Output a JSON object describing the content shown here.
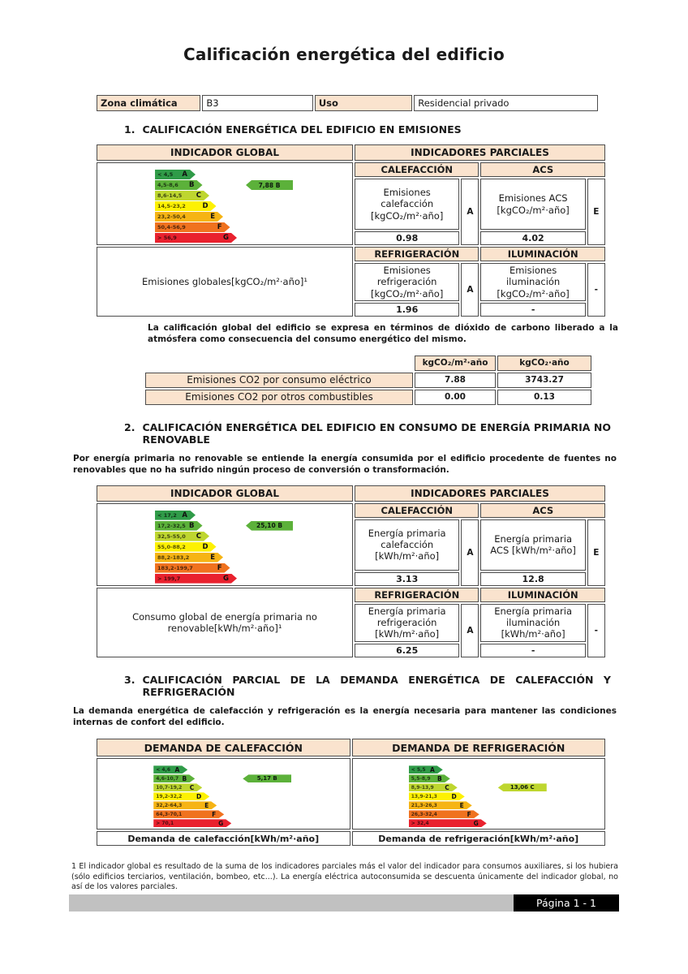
{
  "page": {
    "title": "Calificación energética del edificio",
    "footer_label": "Página 1 - 1"
  },
  "info": {
    "zona_label": "Zona climática",
    "zona_value": "B3",
    "uso_label": "Uso",
    "uso_value": "Residencial privado"
  },
  "scale_colors": [
    "#2f9b48",
    "#5cb13a",
    "#bed62f",
    "#fdf102",
    "#f6b414",
    "#f0721f",
    "#e9212e"
  ],
  "section1": {
    "number": "1.",
    "heading": "CALIFICACIÓN ENERGÉTICA DEL EDIFICIO EN EMISIONES",
    "global_header": "INDICADOR GLOBAL",
    "partial_header": "INDICADORES PARCIALES",
    "scale": {
      "bands": [
        {
          "range": "< 4,5",
          "letter": "A"
        },
        {
          "range": "4,5-8,6",
          "letter": "B"
        },
        {
          "range": "8,6-14,5",
          "letter": "C"
        },
        {
          "range": "14,5-23,2",
          "letter": "D"
        },
        {
          "range": "23,2-50,4",
          "letter": "E"
        },
        {
          "range": "50,4-56,9",
          "letter": "F"
        },
        {
          "range": "> 56,9",
          "letter": "G"
        }
      ],
      "marker": {
        "label": "7,88 B",
        "letter": "B"
      }
    },
    "global_label": "Emisiones globales[kgCO₂/m²·año]¹",
    "calefaccion": {
      "header": "CALEFACCIÓN",
      "label": "Emisiones calefacción [kgCO₂/m²·año]",
      "value": "0.98",
      "letter": "A"
    },
    "acs": {
      "header": "ACS",
      "label": "Emisiones ACS [kgCO₂/m²·año]",
      "value": "4.02",
      "letter": "E"
    },
    "refrigeracion": {
      "header": "REFRIGERACIÓN",
      "label": "Emisiones refrigeración [kgCO₂/m²·año]",
      "value": "1.96",
      "letter": "A"
    },
    "iluminacion": {
      "header": "ILUMINACIÓN",
      "label": "Emisiones iluminación [kgCO₂/m²·año]",
      "value": "-",
      "letter": "-"
    },
    "note": "La calificación global del edificio se expresa en términos de dióxido de carbono liberado a la atmósfera como consecuencia del consumo energético del mismo."
  },
  "co2_table": {
    "col1_header": "kgCO₂/m²·año",
    "col2_header": "kgCO₂·año",
    "rows": [
      {
        "label": "Emisiones CO2 por consumo eléctrico",
        "per_m2": "7.88",
        "total": "3743.27"
      },
      {
        "label": "Emisiones CO2 por otros combustibles",
        "per_m2": "0.00",
        "total": "0.13"
      }
    ]
  },
  "section2": {
    "number": "2.",
    "heading": "CALIFICACIÓN ENERGÉTICA DEL EDIFICIO EN CONSUMO DE ENERGÍA PRIMARIA NO RENOVABLE",
    "intro": "Por energía primaria no renovable se entiende la energía consumida por el edificio procedente de fuentes no renovables que no ha sufrido ningún proceso de conversión o transformación.",
    "global_header": "INDICADOR GLOBAL",
    "partial_header": "INDICADORES PARCIALES",
    "scale": {
      "bands": [
        {
          "range": "< 17,2",
          "letter": "A"
        },
        {
          "range": "17,2-32,5",
          "letter": "B"
        },
        {
          "range": "32,5-55,0",
          "letter": "C"
        },
        {
          "range": "55,0-88,2",
          "letter": "D"
        },
        {
          "range": "88,2-183,2",
          "letter": "E"
        },
        {
          "range": "183,2-199,7",
          "letter": "F"
        },
        {
          "range": "> 199,7",
          "letter": "G"
        }
      ],
      "marker": {
        "label": "25,10 B",
        "letter": "B"
      }
    },
    "global_label": "Consumo global de energía primaria no renovable[kWh/m²·año]¹",
    "calefaccion": {
      "header": "CALEFACCIÓN",
      "label": "Energía primaria calefacción [kWh/m²·año]",
      "value": "3.13",
      "letter": "A"
    },
    "acs": {
      "header": "ACS",
      "label": "Energía primaria ACS [kWh/m²·año]",
      "value": "12.8",
      "letter": "E"
    },
    "refrigeracion": {
      "header": "REFRIGERACIÓN",
      "label": "Energía primaria refrigeración [kWh/m²·año]",
      "value": "6.25",
      "letter": "A"
    },
    "iluminacion": {
      "header": "ILUMINACIÓN",
      "label": "Energía primaria iluminación [kWh/m²·año]",
      "value": "-",
      "letter": "-"
    }
  },
  "section3": {
    "number": "3.",
    "heading": "CALIFICACIÓN PARCIAL DE LA DEMANDA ENERGÉTICA DE CALEFACCIÓN Y REFRIGERACIÓN",
    "intro": "La demanda energética de calefacción y refrigeración es la energía necesaria para mantener las condiciones internas de confort del edificio.",
    "calefaccion": {
      "header": "DEMANDA DE CALEFACCIÓN",
      "caption": "Demanda de calefacción[kWh/m²·año]",
      "scale": {
        "bands": [
          {
            "range": "< 4,6",
            "letter": "A"
          },
          {
            "range": "4,6-10,7",
            "letter": "B"
          },
          {
            "range": "10,7-19,2",
            "letter": "C"
          },
          {
            "range": "19,2-32,2",
            "letter": "D"
          },
          {
            "range": "32,2-64,3",
            "letter": "E"
          },
          {
            "range": "64,3-70,1",
            "letter": "F"
          },
          {
            "range": "> 70,1",
            "letter": "G"
          }
        ],
        "marker": {
          "label": "5,17 B",
          "letter": "B"
        }
      }
    },
    "refrigeracion": {
      "header": "DEMANDA DE REFRIGERACIÓN",
      "caption": "Demanda de refrigeración[kWh/m²·año]",
      "scale": {
        "bands": [
          {
            "range": "< 5,5",
            "letter": "A"
          },
          {
            "range": "5,5-8,9",
            "letter": "B"
          },
          {
            "range": "8,9-13,9",
            "letter": "C"
          },
          {
            "range": "13,9-21,3",
            "letter": "D"
          },
          {
            "range": "21,3-26,3",
            "letter": "E"
          },
          {
            "range": "26,3-32,4",
            "letter": "F"
          },
          {
            "range": "> 32,4",
            "letter": "G"
          }
        ],
        "marker": {
          "label": "13,06 C",
          "letter": "C"
        }
      }
    }
  },
  "footnote": "1 El indicador global es resultado de la suma de los indicadores parciales más el valor del indicador para consumos auxiliares, si los hubiera (sólo edificios terciarios, ventilación, bombeo, etc...). La energía eléctrica autoconsumida se descuenta únicamente del indicador global, no así de los valores parciales."
}
